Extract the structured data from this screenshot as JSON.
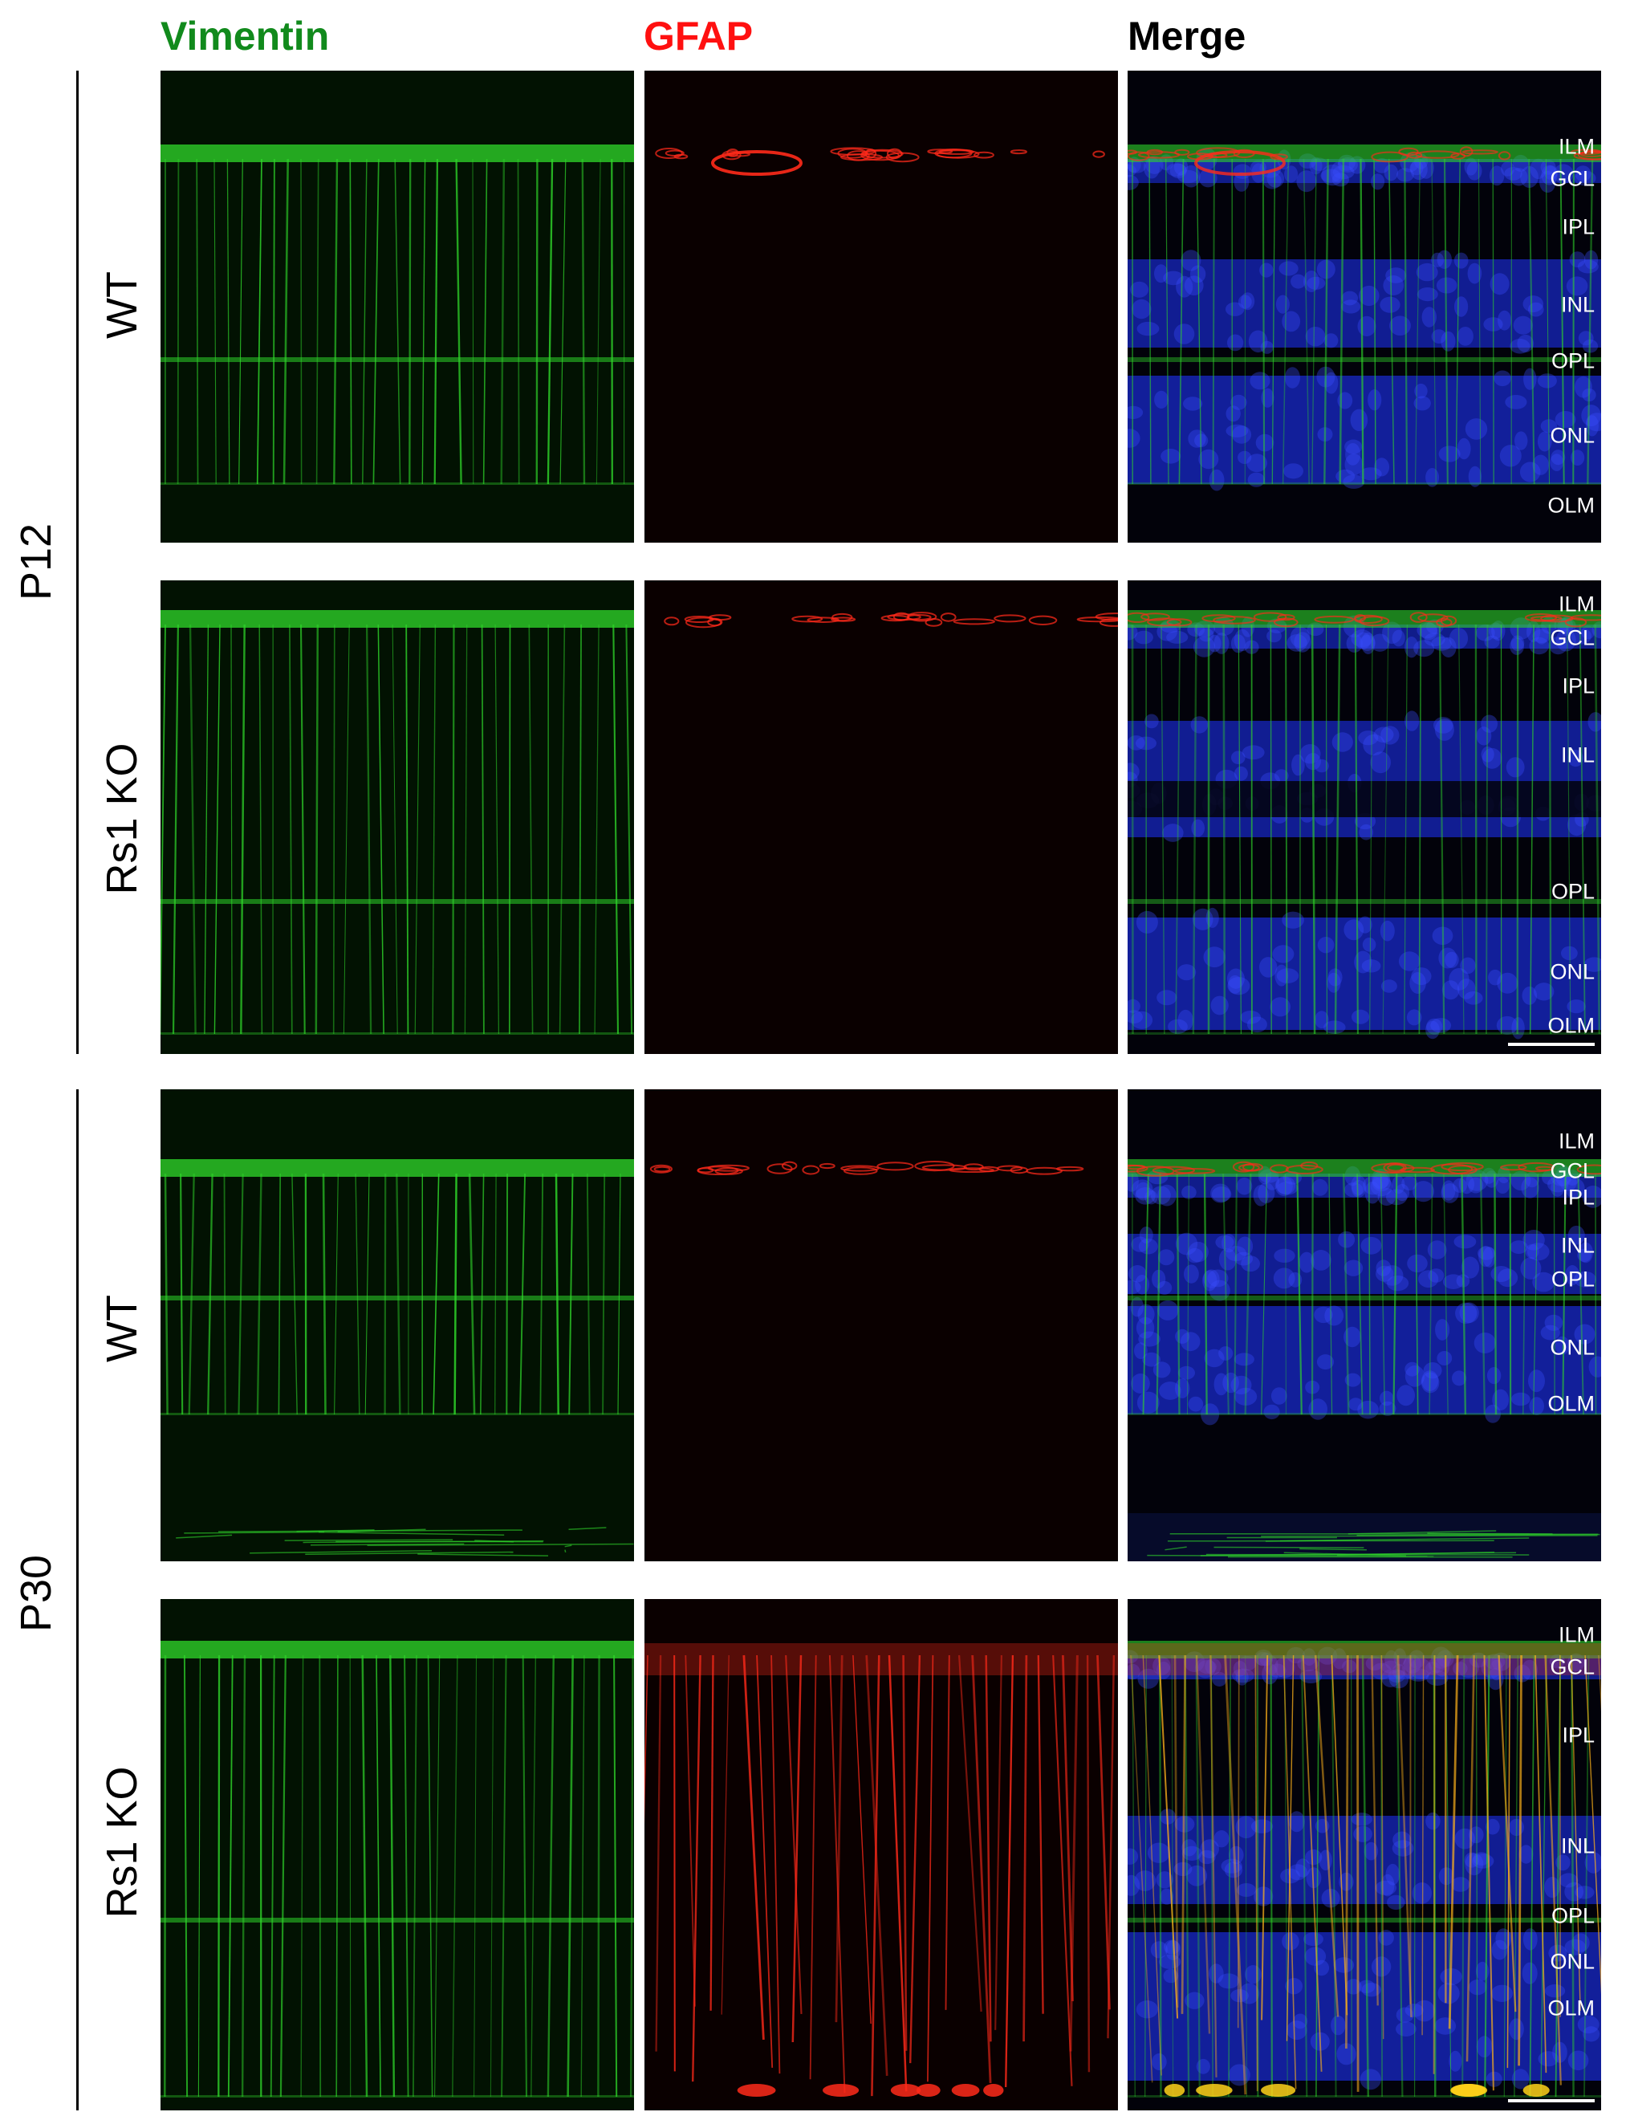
{
  "columns": {
    "vimentin": {
      "label": "Vimentin",
      "color": "#118a1c"
    },
    "gfap": {
      "label": "GFAP",
      "color": "#ff1010"
    },
    "merge": {
      "label": "Merge",
      "color": "#000000"
    }
  },
  "groups": [
    {
      "age": "P12",
      "rows": [
        {
          "genotype": "WT"
        },
        {
          "genotype": "Rs1 KO"
        }
      ]
    },
    {
      "age": "P30",
      "rows": [
        {
          "genotype": "WT"
        },
        {
          "genotype": "Rs1 KO"
        }
      ]
    }
  ],
  "layer_labels": {
    "p12_wt": [
      "ILM",
      "GCL",
      "IPL",
      "INL",
      "OPL",
      "ONL",
      "OLM"
    ],
    "p12_ko": [
      "ILM",
      "GCL",
      "IPL",
      "INL",
      "OPL",
      "ONL",
      "OLM"
    ],
    "p30_wt": [
      "ILM",
      "GCL",
      "IPL",
      "INL",
      "OPL",
      "ONL",
      "OLM"
    ],
    "p30_ko": [
      "ILM",
      "GCL",
      "IPL",
      "INL",
      "OPL",
      "ONL",
      "OLM"
    ]
  },
  "channel_colors": {
    "vimentin_stain": "#2fd62a",
    "gfap_stain": "#ff2a1a",
    "nuclei_stain": "#1a2ee0"
  }
}
